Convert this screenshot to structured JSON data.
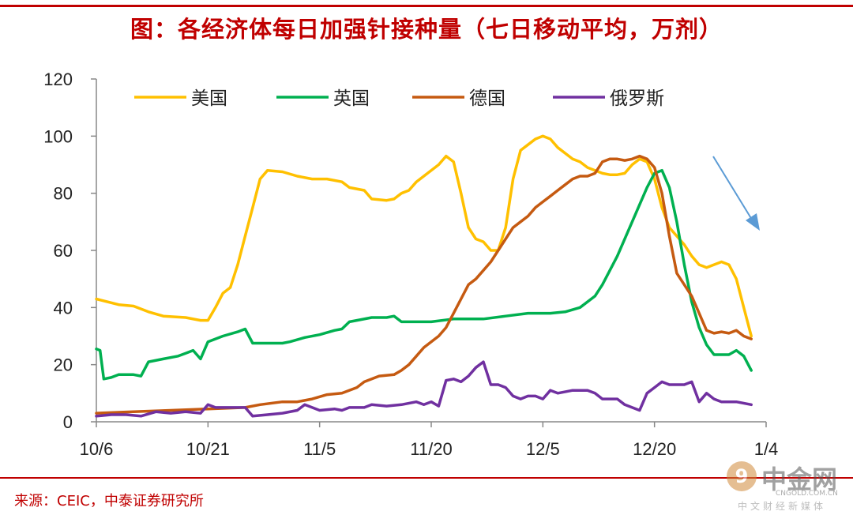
{
  "header": {
    "title": "图：各经济体每日加强针接种量（七日移动平均，万剂）"
  },
  "footer": {
    "source": "来源：CEIC，中泰证券研究所"
  },
  "watermark": {
    "brand": "中金网",
    "url": "CNGOLD.COM.CN",
    "tagline": "中文财经新媒体",
    "logo_glyph": "9"
  },
  "colors": {
    "title": "#c00000",
    "arrow": "#5b9bd5"
  },
  "chart_data": {
    "type": "line",
    "title": "",
    "xlabel": "",
    "ylabel": "",
    "ylim": [
      0,
      120
    ],
    "yticks": [
      0,
      20,
      40,
      60,
      80,
      100,
      120
    ],
    "xlim": [
      0,
      90
    ],
    "xticks": [
      {
        "x": 0,
        "label": "10/6"
      },
      {
        "x": 15,
        "label": "10/21"
      },
      {
        "x": 30,
        "label": "11/5"
      },
      {
        "x": 45,
        "label": "11/20"
      },
      {
        "x": 60,
        "label": "12/5"
      },
      {
        "x": 75,
        "label": "12/20"
      },
      {
        "x": 90,
        "label": "1/4"
      }
    ],
    "grid": false,
    "legend": "top",
    "series": [
      {
        "name": "美国",
        "color": "#ffc000",
        "points": [
          [
            0,
            43
          ],
          [
            3,
            41
          ],
          [
            5,
            40.5
          ],
          [
            7,
            38.5
          ],
          [
            9,
            37
          ],
          [
            12,
            36.5
          ],
          [
            14,
            35.5
          ],
          [
            15,
            35.5
          ],
          [
            16,
            40
          ],
          [
            17,
            45
          ],
          [
            18,
            47
          ],
          [
            19,
            55
          ],
          [
            20,
            65
          ],
          [
            21,
            75
          ],
          [
            22,
            85
          ],
          [
            23,
            88
          ],
          [
            25,
            87.5
          ],
          [
            27,
            86
          ],
          [
            29,
            85
          ],
          [
            31,
            85
          ],
          [
            33,
            84
          ],
          [
            34,
            82
          ],
          [
            36,
            81
          ],
          [
            37,
            78
          ],
          [
            39,
            77.5
          ],
          [
            40,
            78
          ],
          [
            41,
            80
          ],
          [
            42,
            81
          ],
          [
            43,
            84
          ],
          [
            45,
            88
          ],
          [
            46,
            90
          ],
          [
            47,
            93
          ],
          [
            48,
            91
          ],
          [
            49,
            80
          ],
          [
            50,
            68
          ],
          [
            51,
            64
          ],
          [
            52,
            63
          ],
          [
            53,
            60
          ],
          [
            54,
            60
          ],
          [
            55,
            68
          ],
          [
            56,
            85
          ],
          [
            57,
            95
          ],
          [
            58,
            97
          ],
          [
            59,
            99
          ],
          [
            60,
            100
          ],
          [
            61,
            99
          ],
          [
            62,
            96
          ],
          [
            63,
            94
          ],
          [
            64,
            92
          ],
          [
            65,
            91
          ],
          [
            66,
            89
          ],
          [
            67,
            88
          ],
          [
            68,
            87
          ],
          [
            69,
            86.5
          ],
          [
            70,
            86.5
          ],
          [
            71,
            87
          ],
          [
            72,
            90
          ],
          [
            73,
            92
          ],
          [
            74,
            91
          ],
          [
            75,
            85
          ],
          [
            76,
            75
          ],
          [
            77,
            68
          ],
          [
            78,
            65
          ],
          [
            79,
            62
          ],
          [
            80,
            58
          ],
          [
            81,
            55
          ],
          [
            82,
            54
          ],
          [
            83,
            55
          ],
          [
            84,
            56
          ],
          [
            85,
            55
          ],
          [
            86,
            50
          ],
          [
            87,
            40
          ],
          [
            88,
            30
          ]
        ]
      },
      {
        "name": "英国",
        "color": "#00b050",
        "points": [
          [
            0,
            25.5
          ],
          [
            0.5,
            25
          ],
          [
            1,
            15
          ],
          [
            2,
            15.5
          ],
          [
            3,
            16.5
          ],
          [
            5,
            16.5
          ],
          [
            6,
            16
          ],
          [
            7,
            21
          ],
          [
            9,
            22
          ],
          [
            11,
            23
          ],
          [
            12,
            24
          ],
          [
            13,
            25
          ],
          [
            14,
            22
          ],
          [
            15,
            28
          ],
          [
            17,
            30
          ],
          [
            19,
            31.5
          ],
          [
            20,
            32.5
          ],
          [
            21,
            27.5
          ],
          [
            23,
            27.5
          ],
          [
            25,
            27.5
          ],
          [
            26,
            28
          ],
          [
            28,
            29.5
          ],
          [
            30,
            30.5
          ],
          [
            32,
            32
          ],
          [
            33,
            32.5
          ],
          [
            34,
            35
          ],
          [
            35,
            35.5
          ],
          [
            37,
            36.5
          ],
          [
            39,
            36.5
          ],
          [
            40,
            37
          ],
          [
            41,
            35
          ],
          [
            43,
            35
          ],
          [
            45,
            35
          ],
          [
            48,
            36
          ],
          [
            52,
            36
          ],
          [
            55,
            37
          ],
          [
            58,
            38
          ],
          [
            61,
            38
          ],
          [
            63,
            38.5
          ],
          [
            65,
            40
          ],
          [
            67,
            44
          ],
          [
            68,
            48
          ],
          [
            70,
            58
          ],
          [
            72,
            70
          ],
          [
            74,
            82
          ],
          [
            75,
            87
          ],
          [
            76,
            88
          ],
          [
            77,
            82
          ],
          [
            78,
            70
          ],
          [
            79,
            55
          ],
          [
            80,
            42
          ],
          [
            81,
            33
          ],
          [
            82,
            27
          ],
          [
            83,
            23.5
          ],
          [
            85,
            23.5
          ],
          [
            86,
            25
          ],
          [
            87,
            23
          ],
          [
            88,
            18
          ]
        ]
      },
      {
        "name": "德国",
        "color": "#c55a11",
        "points": [
          [
            0,
            3
          ],
          [
            5,
            3.5
          ],
          [
            10,
            4
          ],
          [
            15,
            4.5
          ],
          [
            20,
            5
          ],
          [
            22,
            6
          ],
          [
            25,
            7
          ],
          [
            27,
            7
          ],
          [
            29,
            8
          ],
          [
            31,
            9.5
          ],
          [
            33,
            10
          ],
          [
            35,
            12
          ],
          [
            36,
            14
          ],
          [
            38,
            16
          ],
          [
            40,
            16.5
          ],
          [
            41,
            18
          ],
          [
            42,
            20
          ],
          [
            43,
            23
          ],
          [
            44,
            26
          ],
          [
            45,
            28
          ],
          [
            46,
            30
          ],
          [
            47,
            33
          ],
          [
            48,
            38
          ],
          [
            49,
            43
          ],
          [
            50,
            48
          ],
          [
            51,
            50
          ],
          [
            52,
            53
          ],
          [
            53,
            56
          ],
          [
            54,
            60
          ],
          [
            55,
            64
          ],
          [
            56,
            68
          ],
          [
            57,
            70
          ],
          [
            58,
            72
          ],
          [
            59,
            75
          ],
          [
            60,
            77
          ],
          [
            61,
            79
          ],
          [
            62,
            81
          ],
          [
            63,
            83
          ],
          [
            64,
            85
          ],
          [
            65,
            86
          ],
          [
            66,
            86
          ],
          [
            67,
            87
          ],
          [
            68,
            91
          ],
          [
            69,
            92
          ],
          [
            70,
            92
          ],
          [
            71,
            91.5
          ],
          [
            72,
            92
          ],
          [
            73,
            93
          ],
          [
            74,
            92
          ],
          [
            75,
            89
          ],
          [
            76,
            80
          ],
          [
            77,
            65
          ],
          [
            78,
            52
          ],
          [
            79,
            48
          ],
          [
            80,
            44
          ],
          [
            81,
            38
          ],
          [
            82,
            32
          ],
          [
            83,
            31
          ],
          [
            84,
            31.5
          ],
          [
            85,
            31
          ],
          [
            86,
            32
          ],
          [
            87,
            30
          ],
          [
            88,
            29
          ]
        ]
      },
      {
        "name": "俄罗斯",
        "color": "#7030a0",
        "points": [
          [
            0,
            2
          ],
          [
            2,
            2.5
          ],
          [
            4,
            2.5
          ],
          [
            6,
            2
          ],
          [
            8,
            3.5
          ],
          [
            10,
            3
          ],
          [
            12,
            3.5
          ],
          [
            14,
            3
          ],
          [
            15,
            6
          ],
          [
            16,
            5
          ],
          [
            18,
            5
          ],
          [
            20,
            5
          ],
          [
            21,
            2
          ],
          [
            23,
            2.5
          ],
          [
            25,
            3
          ],
          [
            27,
            4
          ],
          [
            28,
            6
          ],
          [
            30,
            4
          ],
          [
            32,
            4.5
          ],
          [
            33,
            4
          ],
          [
            34,
            5
          ],
          [
            36,
            5
          ],
          [
            37,
            6
          ],
          [
            39,
            5.5
          ],
          [
            41,
            6
          ],
          [
            43,
            7
          ],
          [
            44,
            6
          ],
          [
            45,
            7
          ],
          [
            46,
            5.5
          ],
          [
            47,
            14.5
          ],
          [
            48,
            15
          ],
          [
            49,
            14
          ],
          [
            50,
            16
          ],
          [
            51,
            19
          ],
          [
            52,
            21
          ],
          [
            53,
            13
          ],
          [
            54,
            13
          ],
          [
            55,
            12
          ],
          [
            56,
            9
          ],
          [
            57,
            8
          ],
          [
            58,
            9
          ],
          [
            59,
            9
          ],
          [
            60,
            8
          ],
          [
            61,
            11
          ],
          [
            62,
            10
          ],
          [
            64,
            11
          ],
          [
            66,
            11
          ],
          [
            67,
            10
          ],
          [
            68,
            8
          ],
          [
            69,
            8
          ],
          [
            70,
            8
          ],
          [
            71,
            6
          ],
          [
            72,
            5
          ],
          [
            73,
            4
          ],
          [
            74,
            10
          ],
          [
            75,
            12
          ],
          [
            76,
            14
          ],
          [
            77,
            13
          ],
          [
            78,
            13
          ],
          [
            79,
            13
          ],
          [
            80,
            14
          ],
          [
            81,
            7
          ],
          [
            82,
            10
          ],
          [
            83,
            8
          ],
          [
            84,
            7
          ],
          [
            86,
            7
          ],
          [
            88,
            6
          ]
        ]
      }
    ]
  }
}
